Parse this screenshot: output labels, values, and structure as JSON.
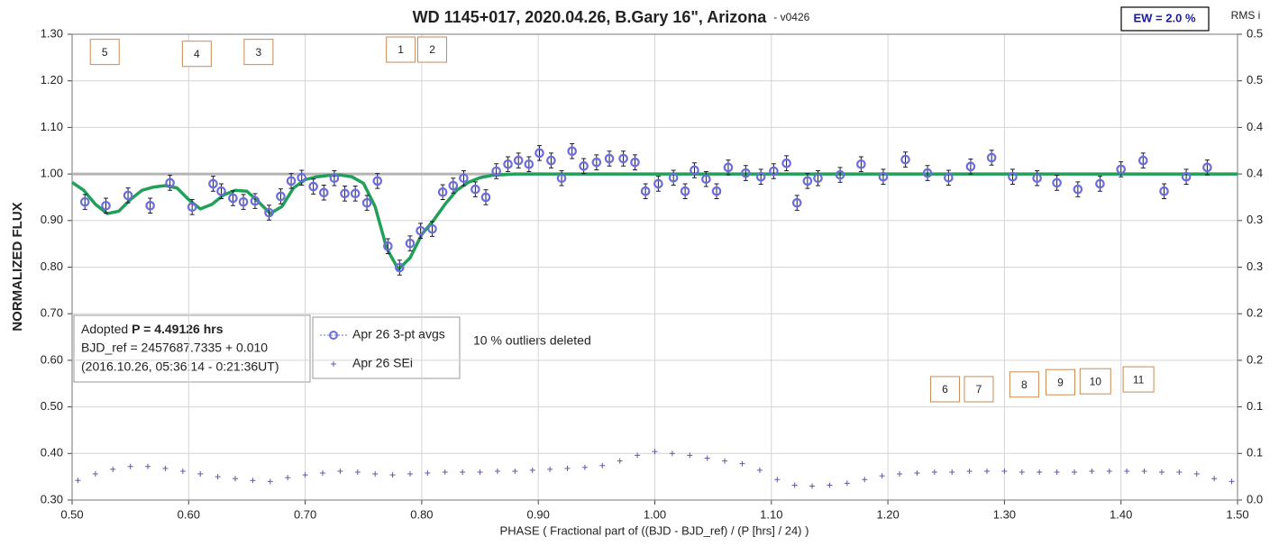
{
  "chart_data": {
    "type": "scatter",
    "title": "WD 1145+017, 2020.04.26, B.Gary 16\", Arizona",
    "subtitle": "-  v0426",
    "badge": "EW = 2.0 %",
    "y_label": "NORMALIZED FLUX",
    "y2_label": "RMS i",
    "x_label": "PHASE ( Fractional part of ((BJD - BJD_ref) / (P [hrs] / 24) )",
    "note": "10 % outliers deleted",
    "info": {
      "adopted": "Adopted",
      "period": "P = 4.49126 hrs",
      "bjd_ref": "BJD_ref = 2457687.7335 + 0.010",
      "date": "(2016.10.26, 05:36:14 - 0:21:36UT)"
    },
    "xlim": [
      0.5,
      1.5
    ],
    "xticks": [
      {
        "value": 0.5,
        "label": "0.50"
      },
      {
        "value": 0.6,
        "label": "0.60"
      },
      {
        "value": 0.7,
        "label": "0.70"
      },
      {
        "value": 0.8,
        "label": "0.80"
      },
      {
        "value": 0.9,
        "label": "0.90"
      },
      {
        "value": 1.0,
        "label": "1.00"
      },
      {
        "value": 1.1,
        "label": "1.10"
      },
      {
        "value": 1.2,
        "label": "1.20"
      },
      {
        "value": 1.3,
        "label": "1.30"
      },
      {
        "value": 1.4,
        "label": "1.40"
      },
      {
        "value": 1.5,
        "label": "1.50"
      }
    ],
    "ylim": [
      0.3,
      1.3
    ],
    "yticks": [
      {
        "value": 0.3,
        "label": "0.30"
      },
      {
        "value": 0.4,
        "label": "0.40"
      },
      {
        "value": 0.5,
        "label": "0.50"
      },
      {
        "value": 0.6,
        "label": "0.60"
      },
      {
        "value": 0.7,
        "label": "0.70"
      },
      {
        "value": 0.8,
        "label": "0.80"
      },
      {
        "value": 0.9,
        "label": "0.90"
      },
      {
        "value": 1.0,
        "label": "1.00"
      },
      {
        "value": 1.1,
        "label": "1.10"
      },
      {
        "value": 1.2,
        "label": "1.20"
      },
      {
        "value": 1.3,
        "label": "1.30"
      }
    ],
    "y2lim": [
      0,
      0.5
    ],
    "y2ticks": [
      {
        "value": 0,
        "label": "0.0"
      },
      {
        "value": 0.05,
        "label": "0.1"
      },
      0.1,
      {
        "value": 0.15,
        "label": "0.2"
      },
      0.2,
      {
        "value": 0.25,
        "label": "0.3"
      },
      0.3,
      {
        "value": 0.35,
        "label": "0.4"
      },
      0.4,
      {
        "value": 0.45,
        "label": "0.5"
      },
      0.5
    ],
    "grid": true,
    "reference_line": {
      "value": 1.0,
      "color": "#b4b4b4"
    },
    "series": [
      {
        "name": "Apr 26 3-pt avgs",
        "color": "#6c6cdc",
        "marker": "circle",
        "error": 0.016,
        "x": [
          0.511,
          0.529,
          0.548,
          0.567,
          0.584,
          0.603,
          0.621,
          0.628,
          0.638,
          0.647,
          0.657,
          0.669,
          0.679,
          0.688,
          0.697,
          0.707,
          0.716,
          0.725,
          0.734,
          0.743,
          0.753,
          0.762,
          0.771,
          0.781,
          0.79,
          0.799,
          0.809,
          0.818,
          0.827,
          0.836,
          0.846,
          0.855,
          0.864,
          0.874,
          0.883,
          0.892,
          0.901,
          0.911,
          0.92,
          0.929,
          0.939,
          0.95,
          0.961,
          0.973,
          0.983,
          0.992,
          1.003,
          1.016,
          1.026,
          1.034,
          1.044,
          1.053,
          1.063,
          1.078,
          1.091,
          1.102,
          1.113,
          1.122,
          1.131,
          1.14,
          1.159,
          1.177,
          1.196,
          1.215,
          1.234,
          1.252,
          1.271,
          1.289,
          1.307,
          1.328,
          1.345,
          1.363,
          1.382,
          1.4,
          1.419,
          1.437,
          1.456,
          1.474
        ],
        "values": [
          0.94,
          0.932,
          0.954,
          0.932,
          0.981,
          0.929,
          0.979,
          0.963,
          0.948,
          0.94,
          0.942,
          0.917,
          0.952,
          0.985,
          0.992,
          0.973,
          0.96,
          0.991,
          0.958,
          0.958,
          0.938,
          0.985,
          0.845,
          0.799,
          0.851,
          0.878,
          0.882,
          0.961,
          0.975,
          0.991,
          0.967,
          0.95,
          1.006,
          1.021,
          1.029,
          1.021,
          1.045,
          1.029,
          0.991,
          1.049,
          1.017,
          1.025,
          1.033,
          1.033,
          1.025,
          0.963,
          0.979,
          0.992,
          0.963,
          1.008,
          0.989,
          0.963,
          1.014,
          1.002,
          0.994,
          1.006,
          1.023,
          0.938,
          0.985,
          0.991,
          0.998,
          1.021,
          0.994,
          1.031,
          1.002,
          0.992,
          1.016,
          1.035,
          0.994,
          0.991,
          0.981,
          0.967,
          0.979,
          1.01,
          1.029,
          0.963,
          0.994,
          1.014
        ]
      },
      {
        "name": "Apr 26 SEi",
        "color": "#5c5ca4",
        "marker": "plus",
        "axis": "y2",
        "x": [
          0.505,
          0.52,
          0.535,
          0.55,
          0.565,
          0.58,
          0.595,
          0.61,
          0.625,
          0.64,
          0.655,
          0.67,
          0.685,
          0.7,
          0.715,
          0.73,
          0.745,
          0.76,
          0.775,
          0.79,
          0.805,
          0.82,
          0.835,
          0.85,
          0.865,
          0.88,
          0.895,
          0.91,
          0.925,
          0.94,
          0.955,
          0.97,
          0.985,
          1.0,
          1.015,
          1.03,
          1.045,
          1.06,
          1.075,
          1.09,
          1.105,
          1.12,
          1.135,
          1.15,
          1.165,
          1.18,
          1.195,
          1.21,
          1.225,
          1.24,
          1.255,
          1.27,
          1.285,
          1.3,
          1.315,
          1.33,
          1.345,
          1.36,
          1.375,
          1.39,
          1.405,
          1.42,
          1.435,
          1.45,
          1.465,
          1.48,
          1.495
        ],
        "values": [
          0.021,
          0.028,
          0.033,
          0.036,
          0.036,
          0.034,
          0.031,
          0.028,
          0.025,
          0.023,
          0.021,
          0.02,
          0.024,
          0.027,
          0.029,
          0.031,
          0.03,
          0.028,
          0.027,
          0.028,
          0.029,
          0.03,
          0.03,
          0.03,
          0.031,
          0.031,
          0.032,
          0.033,
          0.034,
          0.035,
          0.037,
          0.042,
          0.048,
          0.052,
          0.05,
          0.048,
          0.045,
          0.042,
          0.039,
          0.032,
          0.022,
          0.016,
          0.015,
          0.016,
          0.018,
          0.022,
          0.026,
          0.028,
          0.029,
          0.03,
          0.03,
          0.031,
          0.031,
          0.031,
          0.03,
          0.03,
          0.03,
          0.03,
          0.031,
          0.031,
          0.031,
          0.031,
          0.03,
          0.03,
          0.028,
          0.023,
          0.02
        ]
      }
    ],
    "model": {
      "color": "#22a05a",
      "x": [
        0.5,
        0.51,
        0.52,
        0.53,
        0.54,
        0.55,
        0.56,
        0.57,
        0.58,
        0.59,
        0.6,
        0.61,
        0.62,
        0.63,
        0.64,
        0.65,
        0.66,
        0.67,
        0.68,
        0.69,
        0.7,
        0.71,
        0.72,
        0.73,
        0.74,
        0.75,
        0.76,
        0.77,
        0.78,
        0.79,
        0.8,
        0.81,
        0.82,
        0.83,
        0.84,
        0.85,
        0.86,
        0.88,
        1.5
      ],
      "values": [
        0.982,
        0.965,
        0.935,
        0.915,
        0.92,
        0.945,
        0.965,
        0.972,
        0.975,
        0.97,
        0.945,
        0.925,
        0.935,
        0.955,
        0.965,
        0.963,
        0.94,
        0.915,
        0.93,
        0.97,
        0.988,
        0.994,
        0.997,
        0.998,
        0.994,
        0.98,
        0.93,
        0.84,
        0.795,
        0.82,
        0.87,
        0.9,
        0.935,
        0.965,
        0.982,
        0.992,
        0.997,
        1.0,
        1.0
      ]
    },
    "annotations": [
      {
        "text": "5",
        "x": 0.528,
        "y": 1.262
      },
      {
        "text": "4",
        "x": 0.607,
        "y": 1.258
      },
      {
        "text": "3",
        "x": 0.66,
        "y": 1.262
      },
      {
        "text": "1",
        "x": 0.782,
        "y": 1.267
      },
      {
        "text": "2",
        "x": 0.809,
        "y": 1.267
      },
      {
        "text": "6",
        "x": 1.249,
        "y": 0.538
      },
      {
        "text": "7",
        "x": 1.278,
        "y": 0.538
      },
      {
        "text": "8",
        "x": 1.317,
        "y": 0.548
      },
      {
        "text": "9",
        "x": 1.348,
        "y": 0.553
      },
      {
        "text": "10",
        "x": 1.378,
        "y": 0.555
      },
      {
        "text": "11",
        "x": 1.415,
        "y": 0.559
      }
    ]
  }
}
